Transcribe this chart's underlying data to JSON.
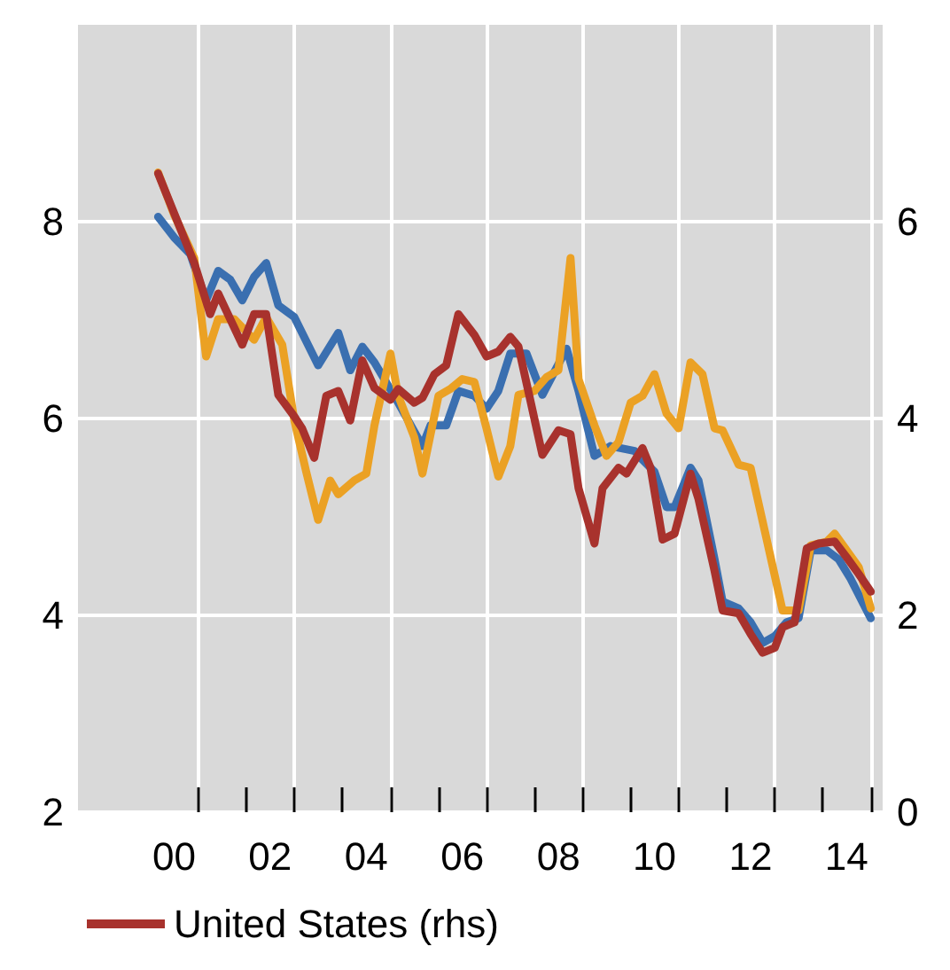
{
  "chart_data": {
    "type": "line",
    "xlim": [
      "1998-07",
      "2015-04"
    ],
    "xticks": [
      {
        "value": "2000-07",
        "label": "00"
      },
      {
        "value": "2002-07",
        "label": "02"
      },
      {
        "value": "2004-07",
        "label": "04"
      },
      {
        "value": "2006-07",
        "label": "06"
      },
      {
        "value": "2008-07",
        "label": "08"
      },
      {
        "value": "2010-07",
        "label": "10"
      },
      {
        "value": "2012-07",
        "label": "12"
      },
      {
        "value": "2014-07",
        "label": "14"
      },
      {
        "value": "2001",
        "label": null
      },
      {
        "value": "2002",
        "label": null
      },
      {
        "value": "2003",
        "label": null
      },
      {
        "value": "2004",
        "label": null
      },
      {
        "value": "2005",
        "label": null
      },
      {
        "value": "2006",
        "label": null
      },
      {
        "value": "2007",
        "label": null
      },
      {
        "value": "2008",
        "label": null
      },
      {
        "value": "2009",
        "label": null
      },
      {
        "value": "2010",
        "label": null
      },
      {
        "value": "2011",
        "label": null
      },
      {
        "value": "2012",
        "label": null
      },
      {
        "value": "2013",
        "label": null
      },
      {
        "value": "2014",
        "label": null
      },
      {
        "value": "2015",
        "label": null
      }
    ],
    "ylim": [
      2,
      10
    ],
    "yticks": [
      2,
      4,
      6,
      8
    ],
    "y2lim": [
      0,
      8
    ],
    "y2ticks": [
      0,
      2,
      4,
      6
    ],
    "grid": true,
    "legend": "bottom left",
    "marker": "none",
    "line_style": "solid",
    "series": [
      {
        "color": "#3a6fb0",
        "x": [
          "2000-03",
          "2000-07",
          "2000-11",
          "2001-03",
          "2001-06",
          "2001-09",
          "2001-12",
          "2002-03",
          "2002-06",
          "2002-09",
          "2003-01",
          "2003-07",
          "2003-12",
          "2004-03",
          "2004-06",
          "2004-09",
          "2005-03",
          "2005-09",
          "2005-11",
          "2006-03",
          "2006-06",
          "2006-10",
          "2007-01",
          "2007-04",
          "2007-07",
          "2007-11",
          "2008-03",
          "2008-09",
          "2008-12",
          "2009-04",
          "2009-08",
          "2010-02",
          "2010-04",
          "2010-07",
          "2010-10",
          "2010-12",
          "2011-04",
          "2011-06",
          "2011-10",
          "2011-12",
          "2012-04",
          "2012-07",
          "2012-10",
          "2013-01",
          "2013-04",
          "2013-07",
          "2013-10",
          "2014-02",
          "2014-05",
          "2014-08",
          "2015-01"
        ],
        "values": [
          8.05,
          7.84,
          7.67,
          7.2,
          7.5,
          7.41,
          7.2,
          7.44,
          7.58,
          7.15,
          7.03,
          6.54,
          6.87,
          6.49,
          6.73,
          6.57,
          6.16,
          5.72,
          5.93,
          5.93,
          6.28,
          6.23,
          6.1,
          6.28,
          6.66,
          6.66,
          6.24,
          6.71,
          6.28,
          5.62,
          5.72,
          5.67,
          5.58,
          5.46,
          5.1,
          5.1,
          5.5,
          5.37,
          4.57,
          4.14,
          4.07,
          3.93,
          3.72,
          3.79,
          3.93,
          3.97,
          4.66,
          4.66,
          4.57,
          4.37,
          3.97
        ]
      },
      {
        "color": "#eba124",
        "x": [
          "2000-03",
          "2000-07",
          "2000-12",
          "2001-03",
          "2001-06",
          "2001-10",
          "2002-03",
          "2002-06",
          "2002-10",
          "2003-01",
          "2003-04",
          "2003-07",
          "2003-10",
          "2003-12",
          "2004-04",
          "2004-07",
          "2004-09",
          "2005-01",
          "2005-03",
          "2005-07",
          "2005-09",
          "2006-01",
          "2006-04",
          "2006-07",
          "2006-10",
          "2007-01",
          "2007-04",
          "2007-07",
          "2007-09",
          "2008-01",
          "2008-04",
          "2008-07",
          "2008-10",
          "2008-12",
          "2009-04",
          "2009-07",
          "2009-10",
          "2010-01",
          "2010-04",
          "2010-07",
          "2010-10",
          "2011-01",
          "2011-04",
          "2011-07",
          "2011-10",
          "2011-12",
          "2012-04",
          "2012-07",
          "2013-03",
          "2013-07",
          "2013-10",
          "2014-02",
          "2014-04",
          "2014-07",
          "2014-10",
          "2015-01"
        ],
        "values": [
          8.5,
          8.07,
          7.63,
          6.63,
          7.01,
          7.01,
          6.8,
          7.03,
          6.75,
          5.98,
          5.46,
          4.97,
          5.37,
          5.23,
          5.37,
          5.44,
          5.93,
          6.66,
          6.23,
          5.81,
          5.44,
          6.23,
          6.3,
          6.4,
          6.37,
          5.9,
          5.41,
          5.72,
          6.24,
          6.28,
          6.42,
          6.49,
          7.63,
          6.4,
          5.93,
          5.62,
          5.76,
          6.16,
          6.23,
          6.45,
          6.05,
          5.9,
          6.57,
          6.45,
          5.9,
          5.88,
          5.53,
          5.5,
          4.05,
          4.05,
          4.71,
          4.75,
          4.83,
          4.66,
          4.49,
          4.07
        ]
      },
      {
        "name": "United States (rhs)",
        "color": "#a8322d",
        "axis": "y2",
        "x": [
          "2000-03",
          "2000-12",
          "2001-04",
          "2001-06",
          "2001-12",
          "2002-03",
          "2002-06",
          "2002-09",
          "2003-01",
          "2003-03",
          "2003-06",
          "2003-09",
          "2003-12",
          "2004-03",
          "2004-06",
          "2004-09",
          "2005-01",
          "2005-03",
          "2005-07",
          "2005-09",
          "2005-12",
          "2006-03",
          "2006-06",
          "2006-10",
          "2007-01",
          "2007-04",
          "2007-07",
          "2007-09",
          "2008-03",
          "2008-07",
          "2008-10",
          "2008-12",
          "2009-04",
          "2009-06",
          "2009-10",
          "2009-12",
          "2010-04",
          "2010-06",
          "2010-09",
          "2010-12",
          "2011-04",
          "2011-06",
          "2011-10",
          "2011-12",
          "2012-04",
          "2012-07",
          "2012-10",
          "2013-01",
          "2013-03",
          "2013-06",
          "2013-09",
          "2013-12",
          "2014-04",
          "2014-07",
          "2014-10",
          "2015-01"
        ],
        "values": [
          6.49,
          5.58,
          5.06,
          5.27,
          4.75,
          5.06,
          5.06,
          4.24,
          4.02,
          3.9,
          3.6,
          4.23,
          4.28,
          3.98,
          4.59,
          4.31,
          4.19,
          4.3,
          4.16,
          4.21,
          4.45,
          4.54,
          5.06,
          4.85,
          4.63,
          4.68,
          4.83,
          4.73,
          3.63,
          3.88,
          3.84,
          3.29,
          2.73,
          3.29,
          3.5,
          3.44,
          3.7,
          3.5,
          2.77,
          2.83,
          3.44,
          3.18,
          2.45,
          2.05,
          2.02,
          1.81,
          1.62,
          1.67,
          1.88,
          1.93,
          2.68,
          2.73,
          2.75,
          2.59,
          2.42,
          2.24
        ]
      }
    ]
  }
}
